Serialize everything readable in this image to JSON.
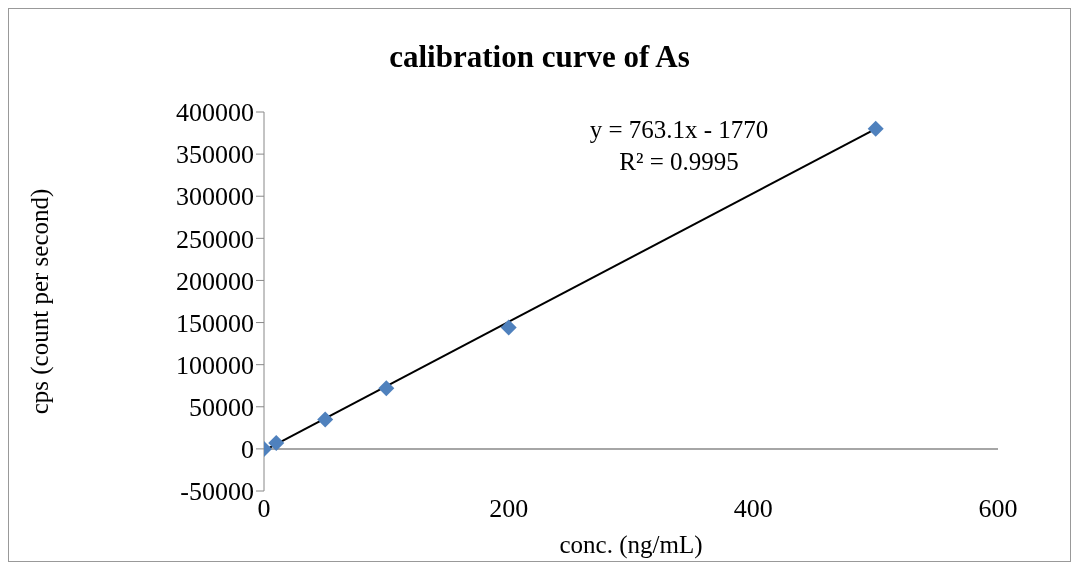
{
  "chart_data": {
    "type": "scatter",
    "title": "calibration curve of As",
    "xlabel": "conc. (ng/mL)",
    "ylabel": "cps (count per second)",
    "annotations": [
      "y = 763.1x - 1770",
      "R² = 0.9995"
    ],
    "x": [
      0,
      10,
      50,
      100,
      200,
      500
    ],
    "series": [
      {
        "type": "scatter",
        "color": "#4f81bd",
        "marker": "diamond",
        "values": [
          0,
          7000,
          35000,
          72000,
          144000,
          380000
        ]
      },
      {
        "type": "line",
        "color": "#000000",
        "marker": "none",
        "x": [
          0,
          500
        ],
        "values": [
          -2000,
          380000
        ]
      }
    ],
    "xlim": [
      0,
      600
    ],
    "xticks": [
      0,
      200,
      400,
      600
    ],
    "ylim": [
      -50000,
      400000
    ],
    "yticks": [
      -50000,
      0,
      50000,
      100000,
      150000,
      200000,
      250000,
      300000,
      350000,
      400000
    ],
    "grid": false,
    "legend": false
  }
}
